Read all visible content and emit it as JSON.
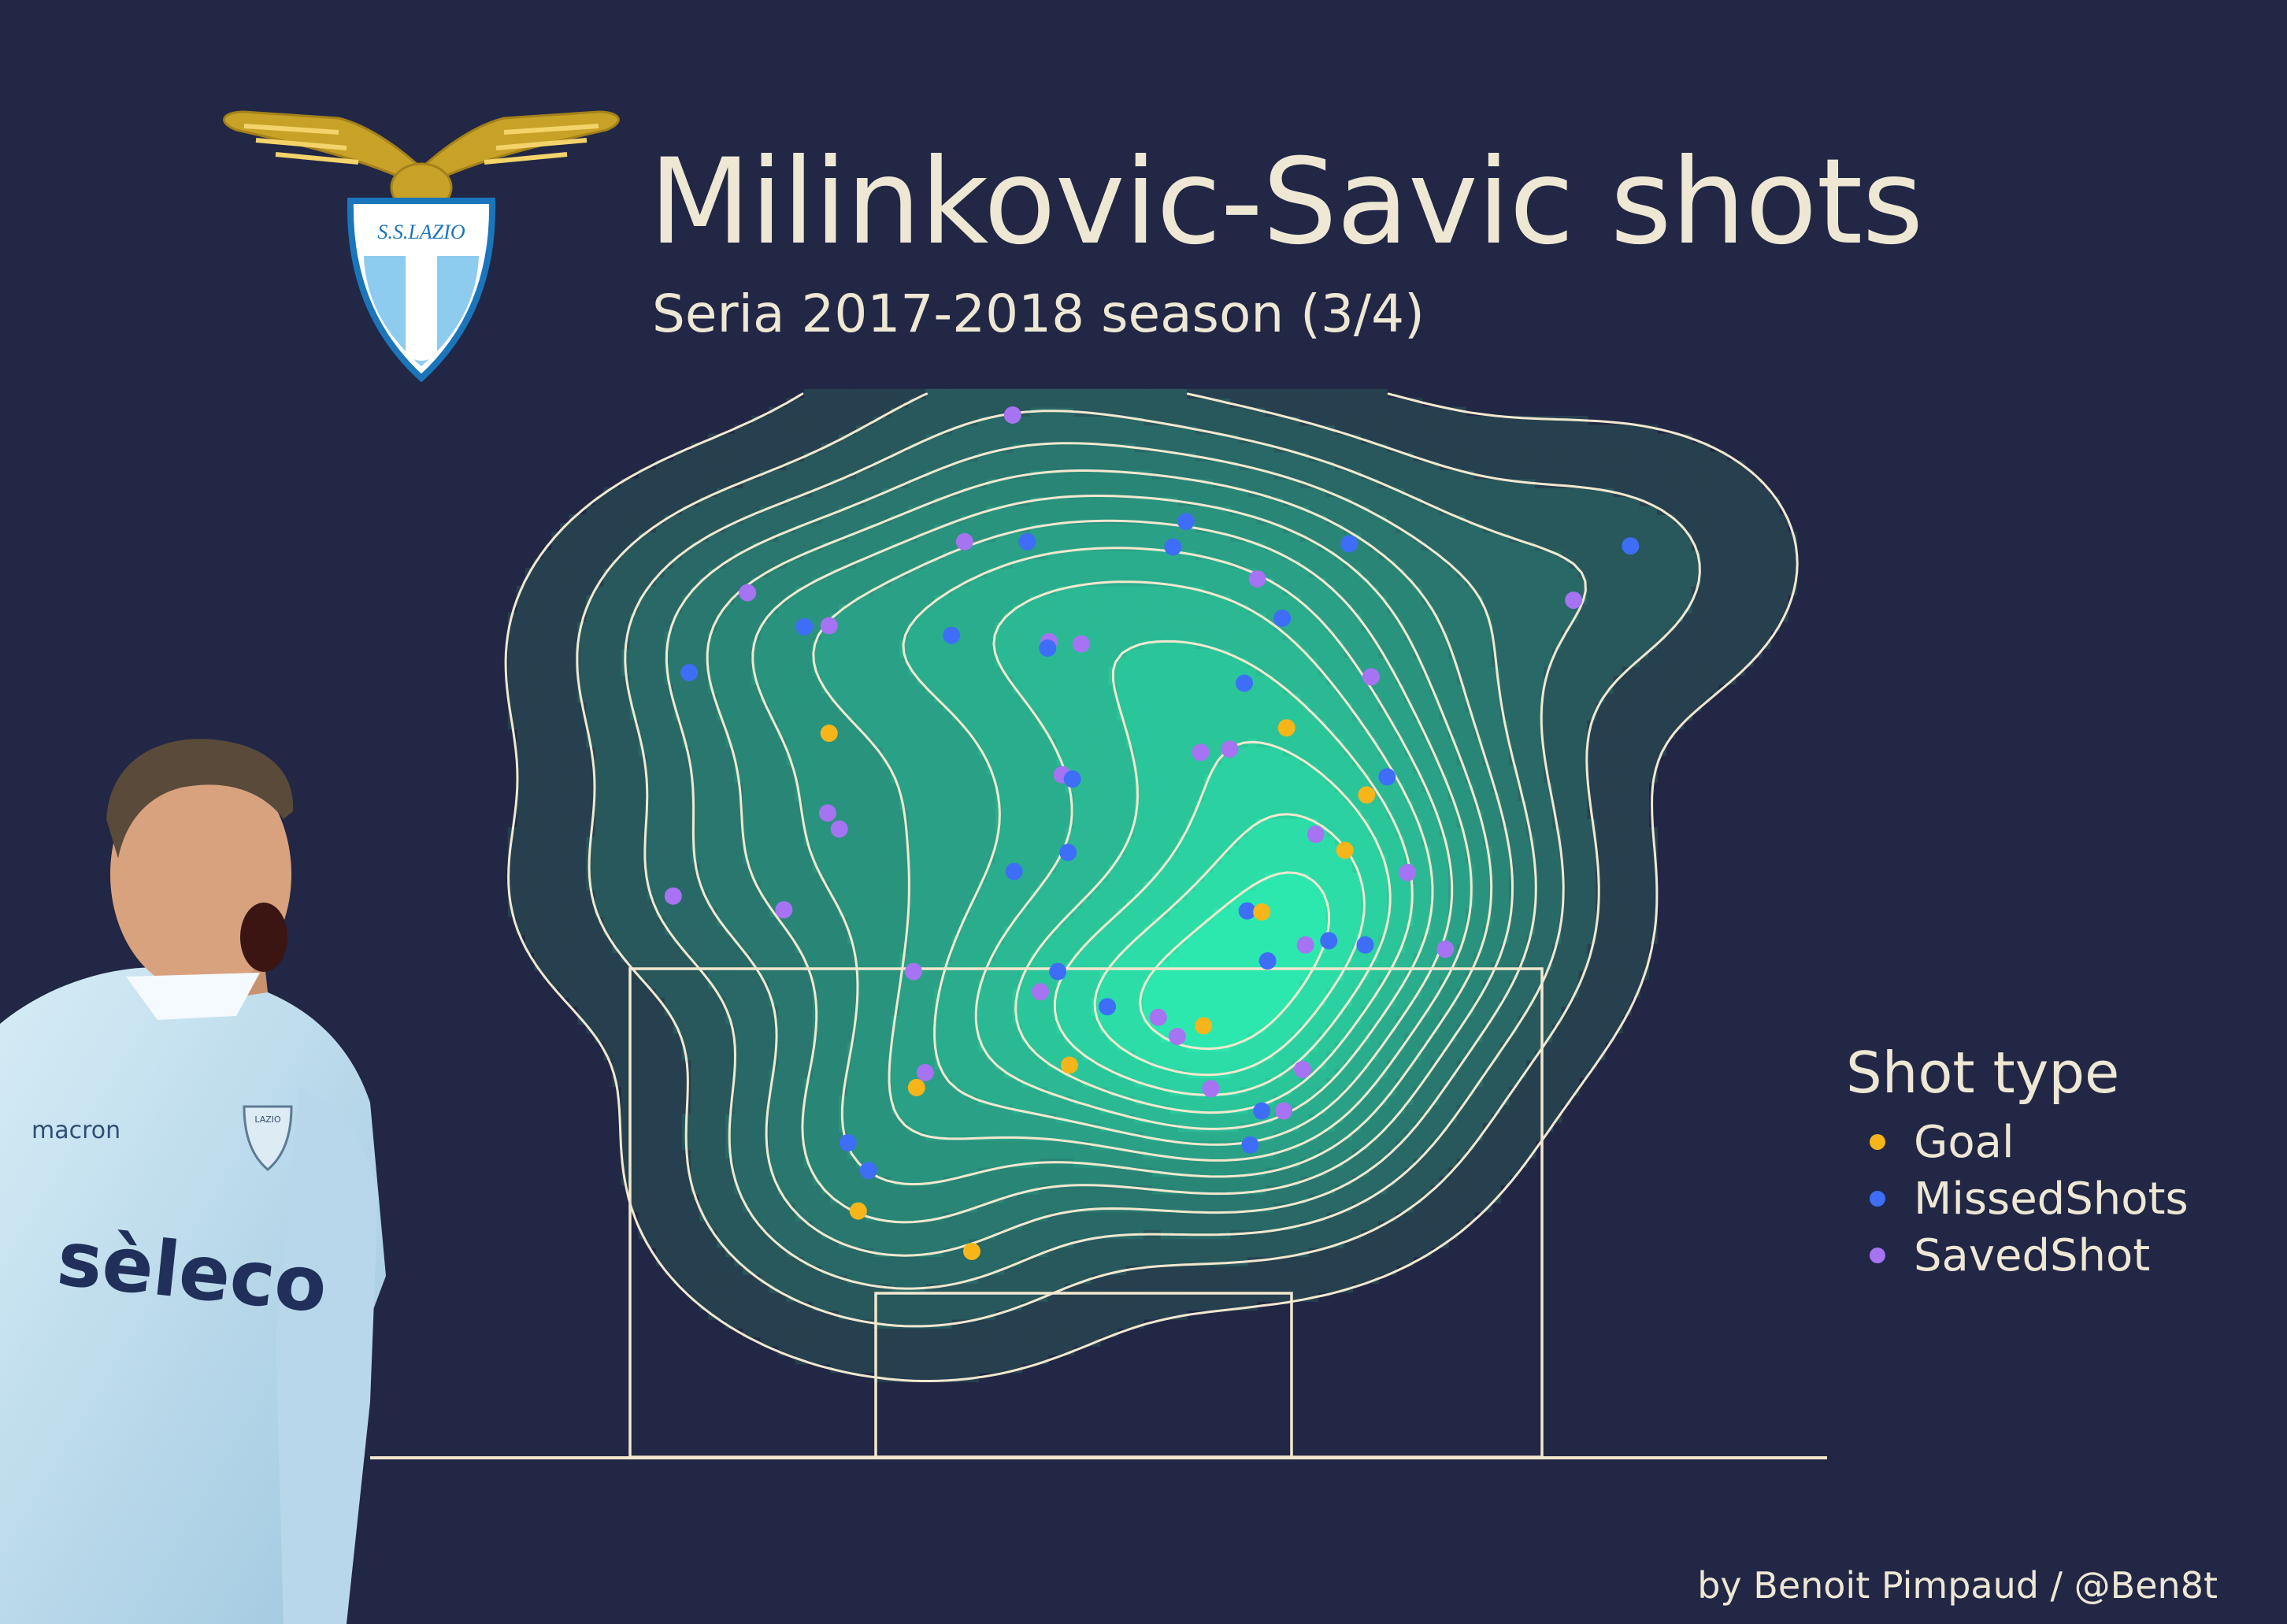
{
  "header": {
    "title": "Milinkovic-Savic shots",
    "subtitle": "Seria 2017-2018 season (3/4)"
  },
  "logo": {
    "text": "S.S.LAZIO"
  },
  "player_jersey": {
    "sponsor": "sèleco",
    "brand": "macron",
    "badge": "LAZIO"
  },
  "credit": "by Benoit Pimpaud / @Ben8t",
  "colors": {
    "background": "#212745",
    "text": "#EEE7D4",
    "goal": "#F7B51A",
    "missed": "#3E6EF7",
    "saved": "#A673F2",
    "density_low": "#27404F",
    "density_high": "#2CE8AE",
    "contour_line": "#F2E8CF"
  },
  "legend": {
    "title": "Shot type",
    "items": [
      {
        "label": "Goal",
        "color": "#F7B51A"
      },
      {
        "label": "MissedShots",
        "color": "#3E6EF7"
      },
      {
        "label": "SavedShot",
        "color": "#A673F2"
      }
    ]
  },
  "chart_data": {
    "type": "scatter",
    "description_layer": "kernel density contours of shot locations on a half pitch (attacking goal at bottom)",
    "x_range": [
      0,
      100
    ],
    "y_range": [
      0,
      100
    ],
    "series": [
      {
        "name": "Goal",
        "color": "#F7B51A",
        "points": [
          {
            "x": 31.5,
            "y": 68.1
          },
          {
            "x": 62.9,
            "y": 68.6
          },
          {
            "x": 68.4,
            "y": 62.3
          },
          {
            "x": 66.9,
            "y": 57.1
          },
          {
            "x": 61.2,
            "y": 51.3
          },
          {
            "x": 57.2,
            "y": 40.6
          },
          {
            "x": 48.0,
            "y": 36.9
          },
          {
            "x": 37.5,
            "y": 34.8
          },
          {
            "x": 33.5,
            "y": 23.2
          },
          {
            "x": 41.3,
            "y": 19.4
          }
        ]
      },
      {
        "name": "MissedShots",
        "color": "#3E6EF7",
        "points": [
          {
            "x": 56.0,
            "y": 88.0
          },
          {
            "x": 45.1,
            "y": 86.1
          },
          {
            "x": 55.1,
            "y": 85.6
          },
          {
            "x": 67.2,
            "y": 85.9
          },
          {
            "x": 86.5,
            "y": 85.7
          },
          {
            "x": 29.8,
            "y": 78.1
          },
          {
            "x": 39.9,
            "y": 77.3
          },
          {
            "x": 46.5,
            "y": 76.1
          },
          {
            "x": 62.6,
            "y": 78.9
          },
          {
            "x": 21.9,
            "y": 73.8
          },
          {
            "x": 60.0,
            "y": 72.8
          },
          {
            "x": 69.8,
            "y": 64.0
          },
          {
            "x": 48.2,
            "y": 63.8
          },
          {
            "x": 47.9,
            "y": 56.9
          },
          {
            "x": 44.2,
            "y": 55.1
          },
          {
            "x": 60.2,
            "y": 51.4
          },
          {
            "x": 65.8,
            "y": 48.6
          },
          {
            "x": 47.2,
            "y": 45.7
          },
          {
            "x": 61.6,
            "y": 46.7
          },
          {
            "x": 50.6,
            "y": 42.4
          },
          {
            "x": 68.3,
            "y": 48.2
          },
          {
            "x": 32.8,
            "y": 29.6
          },
          {
            "x": 34.2,
            "y": 27.0
          },
          {
            "x": 61.2,
            "y": 32.6
          },
          {
            "x": 60.4,
            "y": 29.4
          }
        ]
      },
      {
        "name": "SavedShot",
        "color": "#A673F2",
        "points": [
          {
            "x": 44.1,
            "y": 98.0
          },
          {
            "x": 40.8,
            "y": 86.1
          },
          {
            "x": 25.9,
            "y": 81.3
          },
          {
            "x": 60.9,
            "y": 82.6
          },
          {
            "x": 82.6,
            "y": 80.6
          },
          {
            "x": 31.5,
            "y": 78.2
          },
          {
            "x": 46.6,
            "y": 76.7
          },
          {
            "x": 48.8,
            "y": 76.5
          },
          {
            "x": 68.7,
            "y": 73.4
          },
          {
            "x": 59.0,
            "y": 66.6
          },
          {
            "x": 57.0,
            "y": 66.3
          },
          {
            "x": 47.5,
            "y": 64.2
          },
          {
            "x": 31.4,
            "y": 60.6
          },
          {
            "x": 32.2,
            "y": 59.1
          },
          {
            "x": 64.9,
            "y": 58.6
          },
          {
            "x": 71.2,
            "y": 55.0
          },
          {
            "x": 20.8,
            "y": 52.8
          },
          {
            "x": 28.4,
            "y": 51.5
          },
          {
            "x": 64.2,
            "y": 48.2
          },
          {
            "x": 73.8,
            "y": 47.8
          },
          {
            "x": 37.3,
            "y": 45.7
          },
          {
            "x": 46.0,
            "y": 43.8
          },
          {
            "x": 54.1,
            "y": 41.4
          },
          {
            "x": 55.4,
            "y": 39.6
          },
          {
            "x": 38.1,
            "y": 36.2
          },
          {
            "x": 57.7,
            "y": 34.7
          },
          {
            "x": 64.0,
            "y": 36.5
          },
          {
            "x": 62.7,
            "y": 32.6
          }
        ]
      }
    ]
  }
}
